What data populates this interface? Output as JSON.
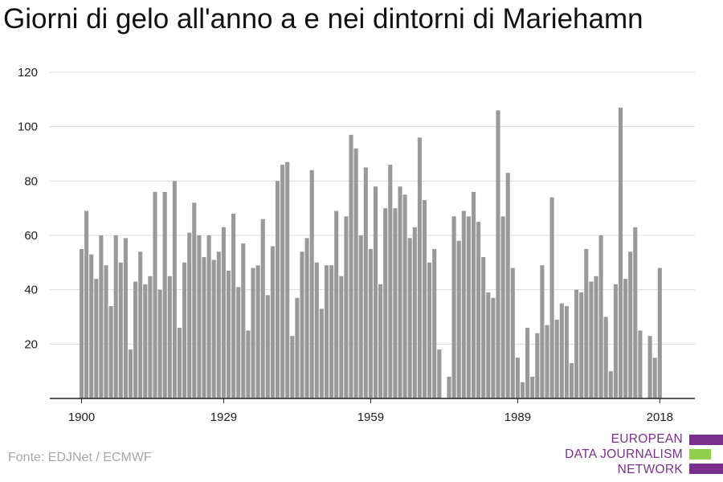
{
  "chart_data": {
    "type": "bar",
    "title": "Giorni di gelo all'anno a e nei dintorni di Mariehamn",
    "xlabel": "",
    "ylabel": "",
    "ylim": [
      0,
      120
    ],
    "yticks": [
      20,
      40,
      60,
      80,
      100,
      120
    ],
    "xticks": [
      1900,
      1929,
      1959,
      1989,
      2018
    ],
    "grid": true,
    "bar_color": "#999999",
    "x": [
      1900,
      1901,
      1902,
      1903,
      1904,
      1905,
      1906,
      1907,
      1908,
      1909,
      1910,
      1911,
      1912,
      1913,
      1914,
      1915,
      1916,
      1917,
      1918,
      1919,
      1920,
      1921,
      1922,
      1923,
      1924,
      1925,
      1926,
      1927,
      1928,
      1929,
      1930,
      1931,
      1932,
      1933,
      1934,
      1935,
      1936,
      1937,
      1938,
      1939,
      1940,
      1941,
      1942,
      1943,
      1944,
      1945,
      1946,
      1947,
      1948,
      1949,
      1950,
      1951,
      1952,
      1953,
      1954,
      1955,
      1956,
      1957,
      1958,
      1959,
      1960,
      1961,
      1962,
      1963,
      1964,
      1965,
      1966,
      1967,
      1968,
      1969,
      1970,
      1971,
      1972,
      1973,
      1974,
      1975,
      1976,
      1977,
      1978,
      1979,
      1980,
      1981,
      1982,
      1983,
      1984,
      1985,
      1986,
      1987,
      1988,
      1989,
      1990,
      1991,
      1992,
      1993,
      1994,
      1995,
      1996,
      1997,
      1998,
      1999,
      2000,
      2001,
      2002,
      2003,
      2004,
      2005,
      2006,
      2007,
      2008,
      2009,
      2010,
      2011,
      2012,
      2013,
      2014,
      2015,
      2016,
      2017,
      2018
    ],
    "values": [
      55,
      69,
      53,
      44,
      60,
      49,
      34,
      60,
      50,
      59,
      18,
      43,
      54,
      42,
      45,
      76,
      40,
      76,
      45,
      80,
      26,
      50,
      61,
      72,
      60,
      52,
      60,
      51,
      54,
      63,
      47,
      68,
      41,
      57,
      25,
      48,
      49,
      66,
      38,
      56,
      80,
      86,
      87,
      23,
      37,
      54,
      59,
      84,
      50,
      33,
      49,
      49,
      69,
      45,
      67,
      97,
      92,
      60,
      85,
      55,
      78,
      42,
      70,
      86,
      70,
      78,
      75,
      59,
      63,
      96,
      73,
      50,
      55,
      18,
      0,
      8,
      67,
      58,
      69,
      67,
      76,
      65,
      52,
      39,
      37,
      106,
      67,
      83,
      48,
      15,
      6,
      26,
      8,
      24,
      49,
      27,
      74,
      29,
      35,
      34,
      13,
      40,
      39,
      55,
      43,
      45,
      60,
      30,
      10,
      42,
      107,
      44,
      54,
      63,
      25,
      0,
      23,
      15,
      48
    ]
  },
  "source": "Fonte: EDJNet / ECMWF",
  "logo": {
    "line1": "EUROPEAN",
    "line2": "DATA JOURNALISM",
    "line3": "NETWORK",
    "color_purple": "#7b2f8c",
    "color_green": "#8fd14f"
  }
}
